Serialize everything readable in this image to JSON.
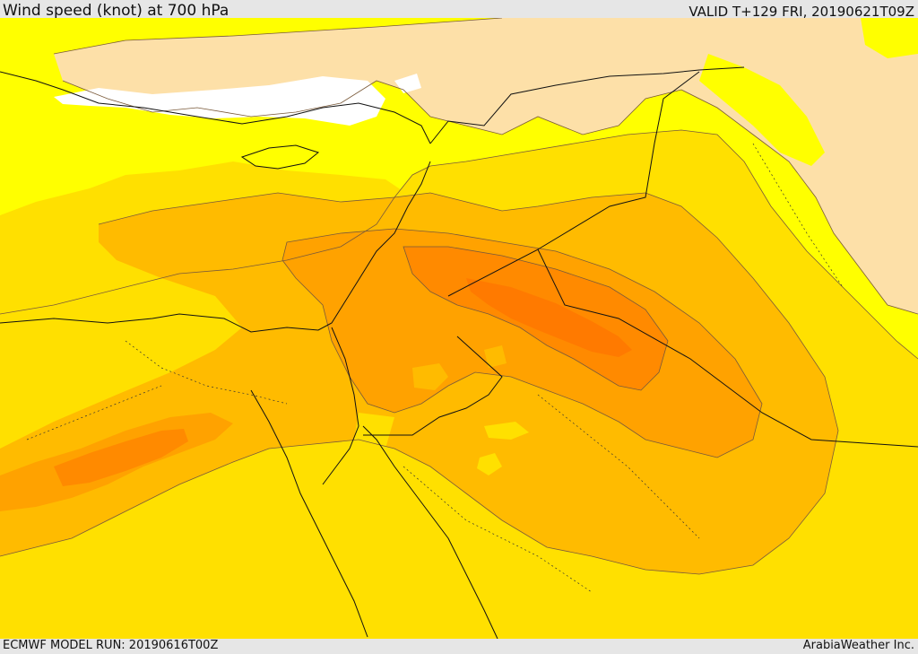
{
  "header": {
    "title": "Wind speed (knot) at 700 hPa",
    "valid_time": "VALID T+129 FRI, 20190621T09Z"
  },
  "footer": {
    "model_run": "ECMWF MODEL RUN: 20190616T00Z",
    "credit": "ArabiaWeather Inc."
  },
  "map": {
    "variable": "wind speed",
    "level_hpa": 700,
    "units": "knot",
    "fill_colors": {
      "calm": "#ffffff",
      "low": "#fde0a8",
      "light": "#ffff00",
      "moderate": "#ffe000",
      "fresh": "#ffbb00",
      "strong": "#ffa200",
      "very_strong": "#ff8a00",
      "max": "#ff7a00"
    },
    "line_colors": {
      "contour": "#7a5a3a",
      "border": "#111111",
      "internal_border": "#333333"
    }
  }
}
